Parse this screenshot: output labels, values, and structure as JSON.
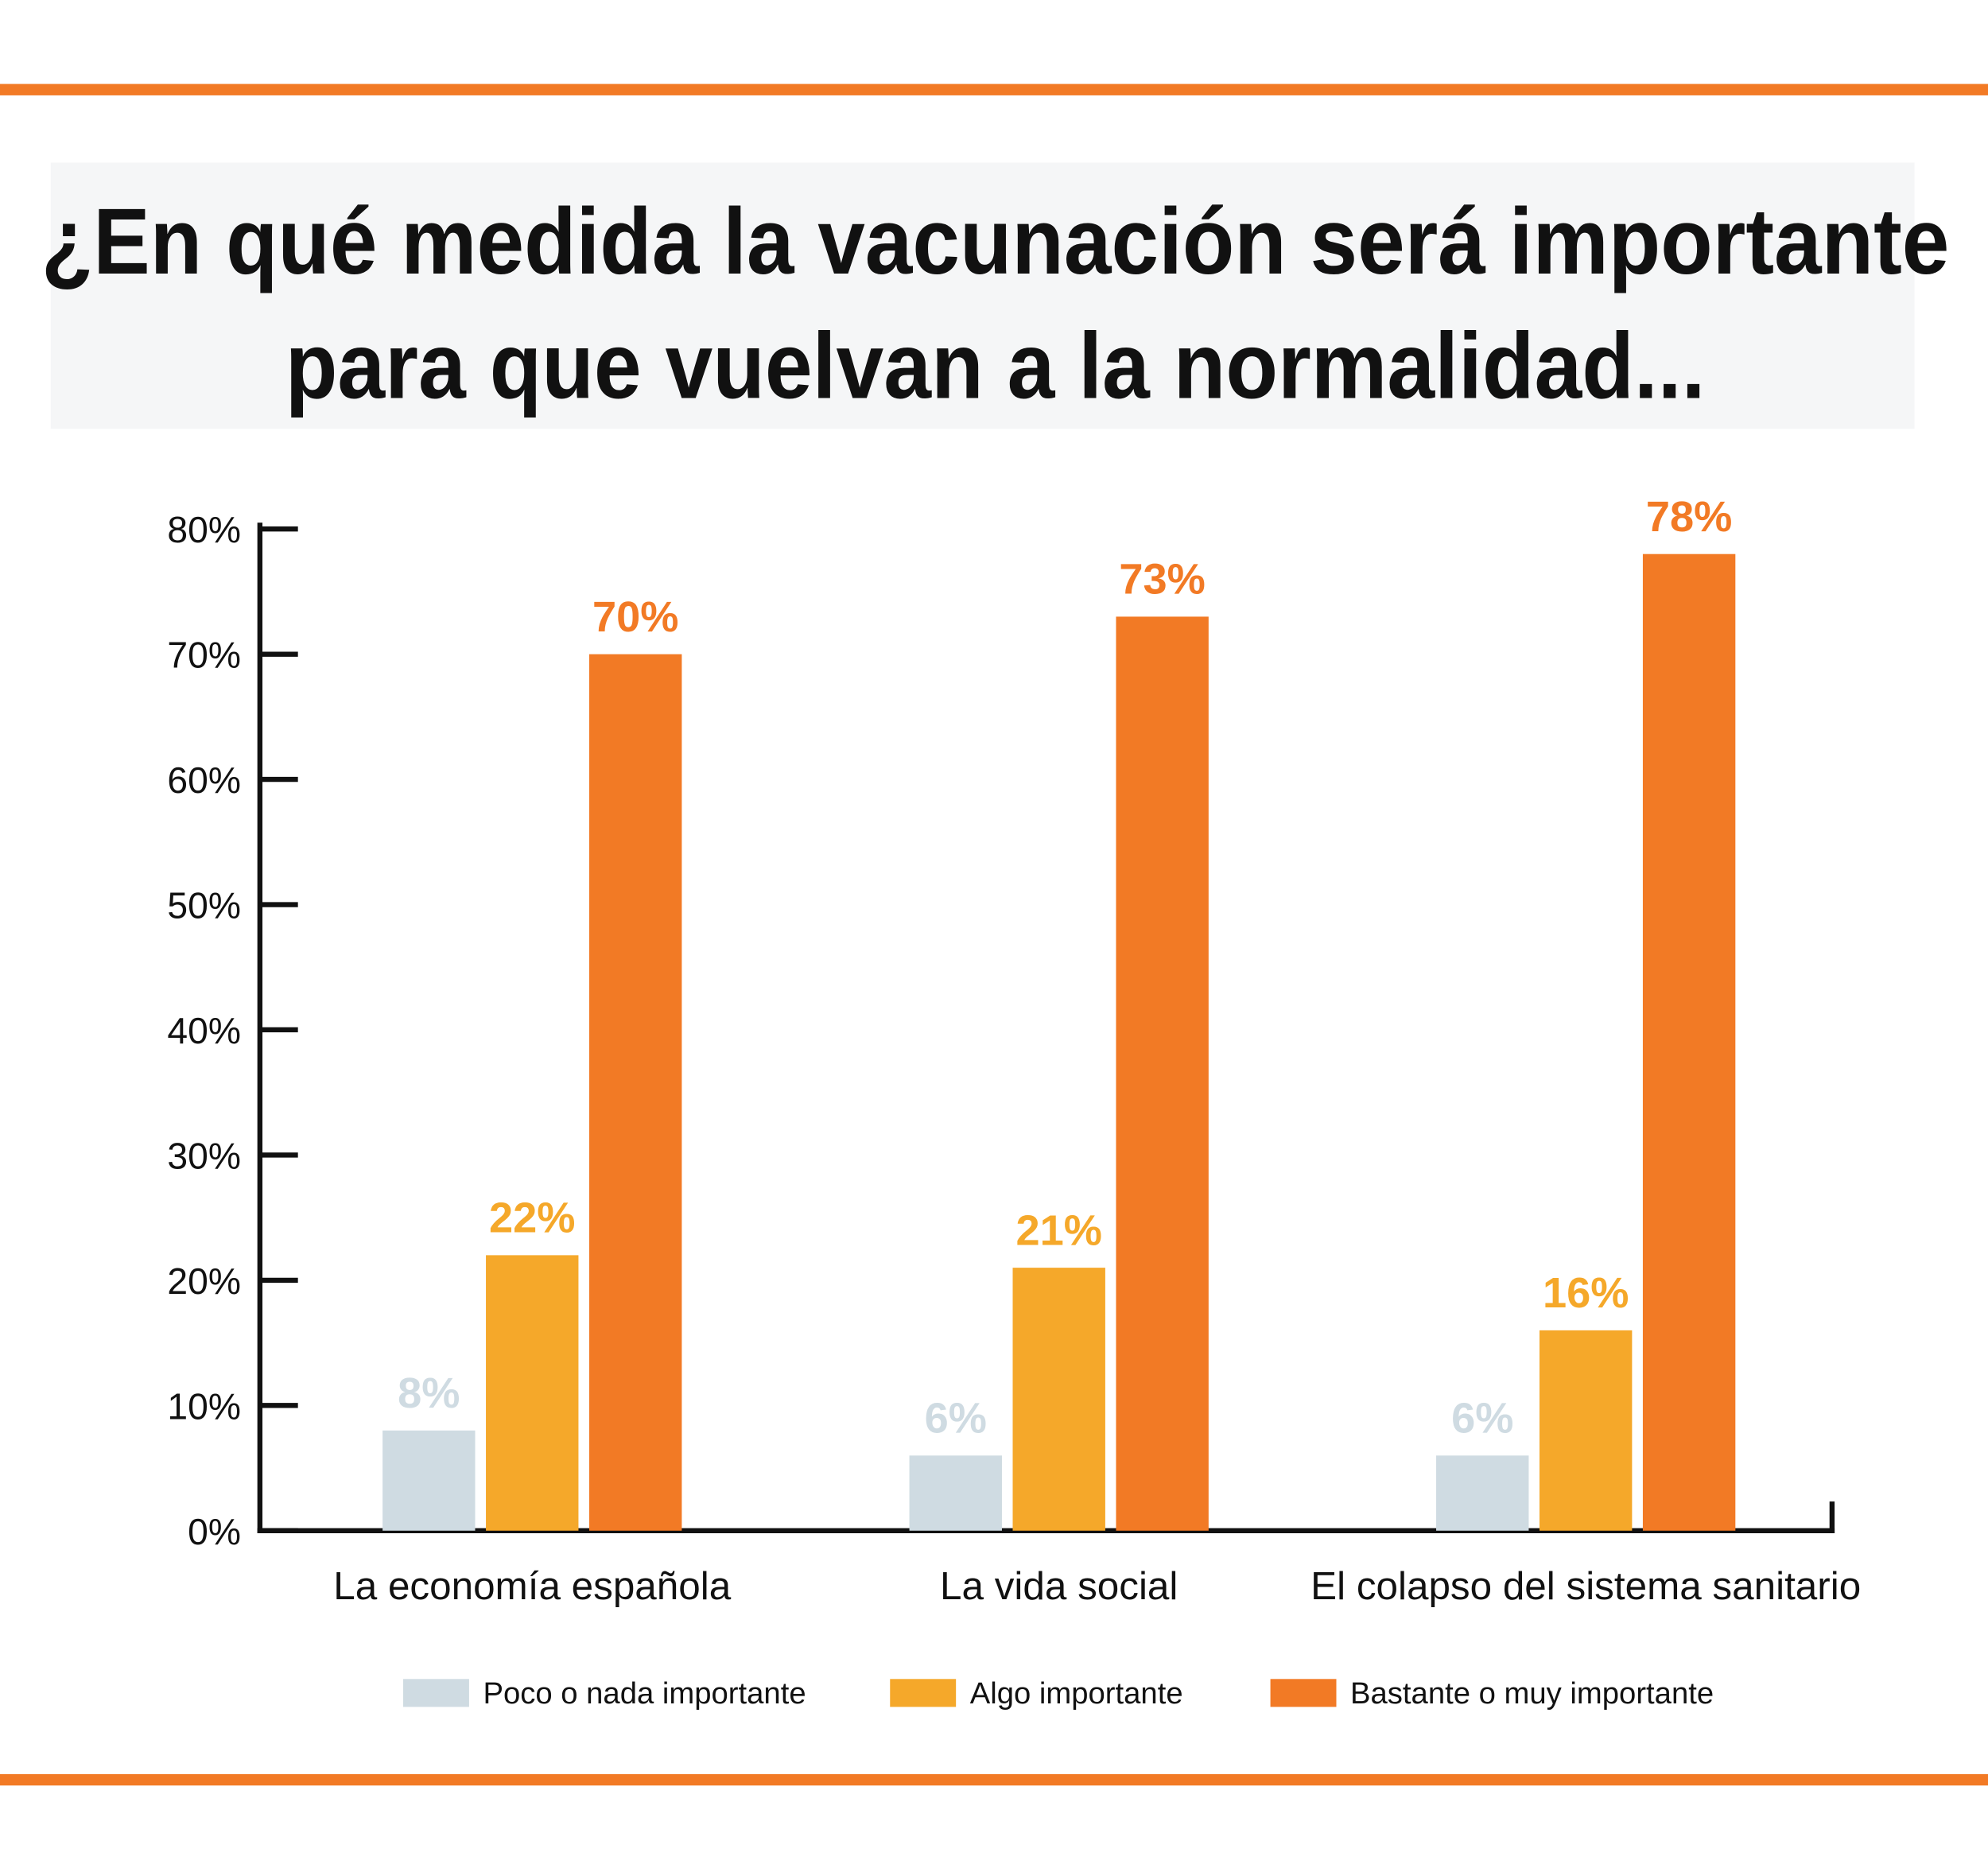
{
  "chart_data": {
    "type": "bar",
    "title": [
      "¿En qué medida la vacunación será importante",
      "para que vuelvan a la normalidad..."
    ],
    "categories": [
      "La economía española",
      "La vida social",
      "El colapso del sistema sanitario"
    ],
    "series": [
      {
        "name": "Poco o nada importante",
        "color": "#cfdbe2",
        "values": [
          8,
          6,
          6
        ],
        "value_labels": [
          "8%",
          "6%",
          "6%"
        ]
      },
      {
        "name": "Algo importante",
        "color": "#f5a82a",
        "values": [
          22,
          21,
          16
        ],
        "value_labels": [
          "22%",
          "21%",
          "16%"
        ]
      },
      {
        "name": "Bastante o muy importante",
        "color": "#f27a25",
        "values": [
          70,
          73,
          78
        ],
        "value_labels": [
          "70%",
          "73%",
          "78%"
        ]
      }
    ],
    "ylim": [
      0,
      80
    ],
    "yticks": [
      {
        "value": 0,
        "label": "0%"
      },
      {
        "value": 10,
        "label": "10%"
      },
      {
        "value": 20,
        "label": "20%"
      },
      {
        "value": 30,
        "label": "30%"
      },
      {
        "value": 40,
        "label": "40%"
      },
      {
        "value": 50,
        "label": "50%"
      },
      {
        "value": 60,
        "label": "60%"
      },
      {
        "value": 70,
        "label": "70%"
      },
      {
        "value": 80,
        "label": "80%"
      }
    ],
    "legend": "bottom"
  }
}
